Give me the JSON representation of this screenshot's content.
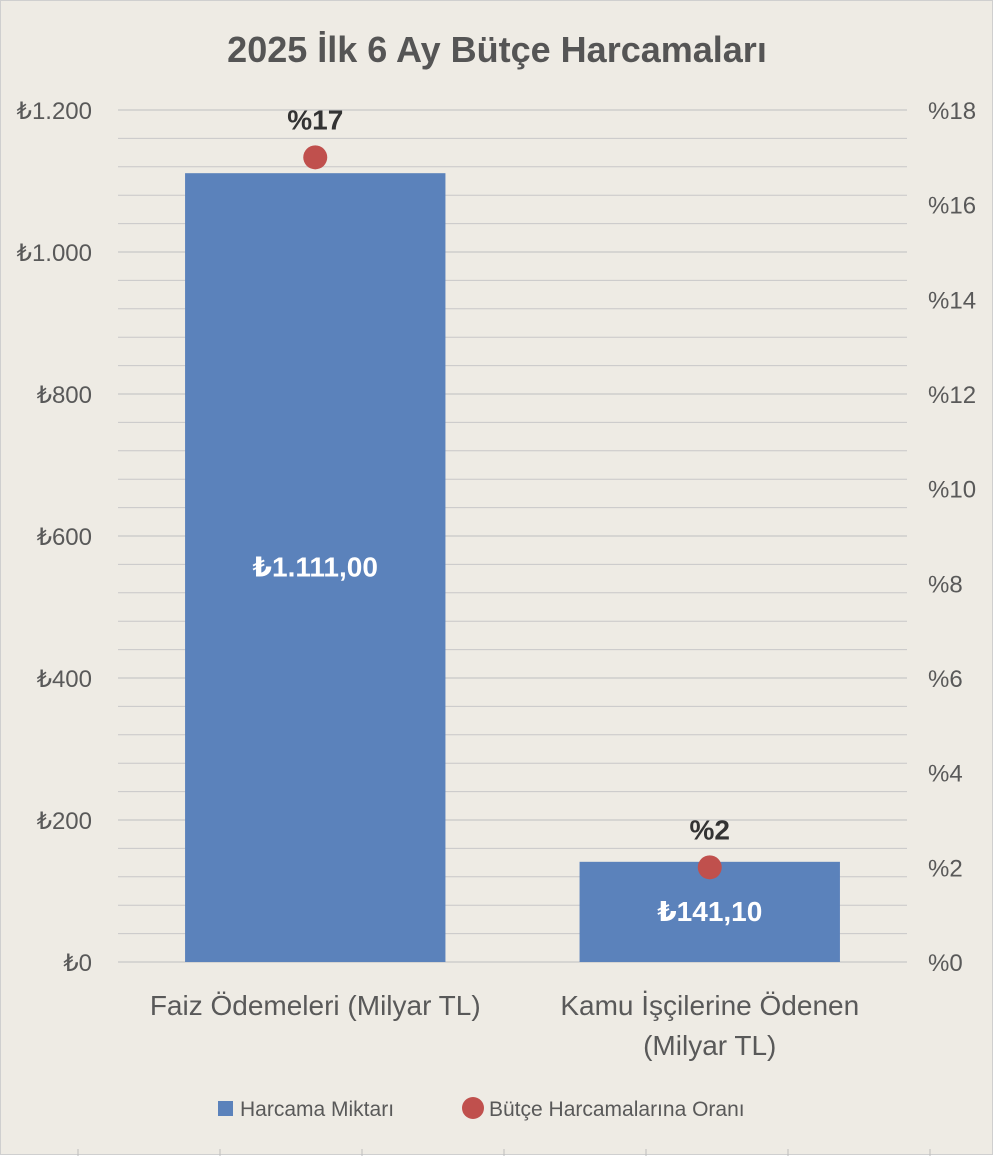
{
  "chart_data": {
    "type": "bar",
    "title": "2025 İlk 6 Ay Bütçe Harcamaları",
    "categories": [
      [
        "Faiz Ödemeleri (Milyar TL)"
      ],
      [
        "Kamu İşçilerine Ödenen",
        "(Milyar TL)"
      ]
    ],
    "series": [
      {
        "name": "Harcama Miktarı",
        "kind": "bar",
        "axis": "left",
        "color": "#5b82bb",
        "values": [
          1111.0,
          141.1
        ],
        "labels": [
          "₺1.111,00",
          "₺141,10"
        ]
      },
      {
        "name": "Bütçe Harcamalarına Oranı",
        "kind": "scatter",
        "axis": "right",
        "color": "#c0504d",
        "values": [
          17,
          2
        ],
        "labels": [
          "%17",
          "%2"
        ]
      }
    ],
    "y_left": {
      "ylim": [
        0,
        1200
      ],
      "ticks": [
        0,
        200,
        400,
        600,
        800,
        1000,
        1200
      ],
      "tick_labels": [
        "₺0",
        "₺200",
        "₺400",
        "₺600",
        "₺800",
        "₺1.000",
        "₺1.200"
      ]
    },
    "y_right": {
      "ylim": [
        0,
        18
      ],
      "ticks": [
        0,
        2,
        4,
        6,
        8,
        10,
        12,
        14,
        16,
        18
      ],
      "tick_labels": [
        "%0",
        "%2",
        "%4",
        "%6",
        "%8",
        "%10",
        "%12",
        "%14",
        "%16",
        "%18"
      ]
    },
    "grid": true,
    "legend_position": "bottom",
    "colors": {
      "background": "#eeebe4",
      "frame": "#cfcfcf",
      "grid": "#c8c8c8",
      "axis_text": "#595959",
      "title": "#555555",
      "bar_label": "#ffffff",
      "point_label": "#333333"
    }
  }
}
